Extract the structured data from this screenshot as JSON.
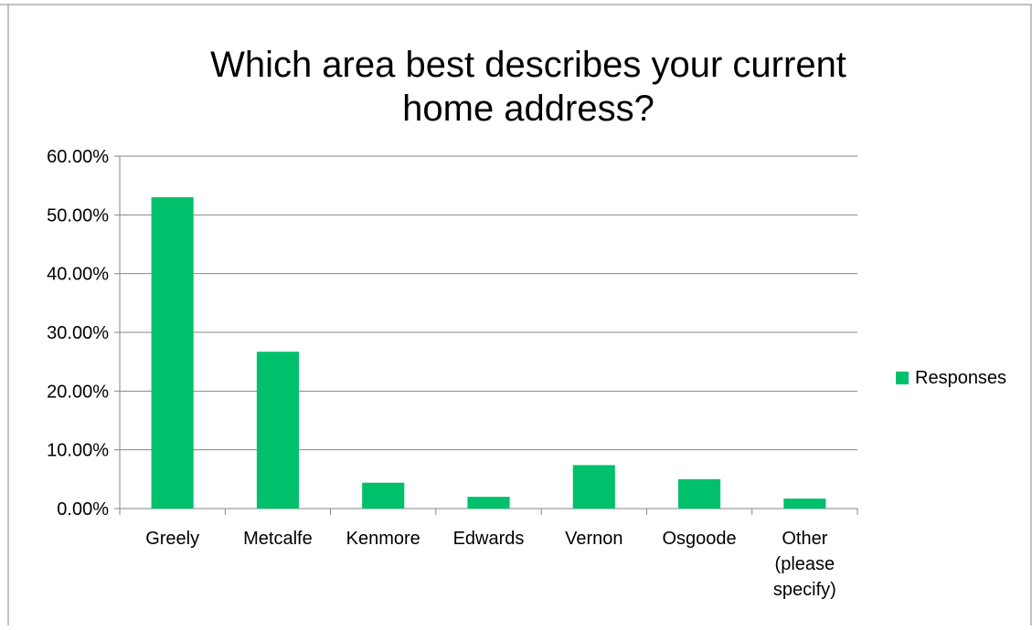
{
  "chart_data": {
    "type": "bar",
    "title": [
      "Which area best describes your current",
      "home address?"
    ],
    "xlabel": "",
    "ylabel": "",
    "categories": [
      [
        "Greely"
      ],
      [
        "Metcalfe"
      ],
      [
        "Kenmore"
      ],
      [
        "Edwards"
      ],
      [
        "Vernon"
      ],
      [
        "Osgoode"
      ],
      [
        "Other",
        "(please",
        "specify)"
      ]
    ],
    "series": [
      {
        "name": "Responses",
        "color": "#00c06b",
        "values": [
          0.53,
          0.267,
          0.044,
          0.02,
          0.074,
          0.05,
          0.017
        ]
      }
    ],
    "ylim": [
      0,
      0.6
    ],
    "ytick_values": [
      0,
      0.1,
      0.2,
      0.3,
      0.4,
      0.5,
      0.6
    ],
    "ytick_labels": [
      "0.00%",
      "10.00%",
      "20.00%",
      "30.00%",
      "40.00%",
      "50.00%",
      "60.00%"
    ],
    "grid": true,
    "legend_position": "right",
    "axis_color": "#868686",
    "grid_color": "#868686",
    "text_color": "#000000"
  }
}
